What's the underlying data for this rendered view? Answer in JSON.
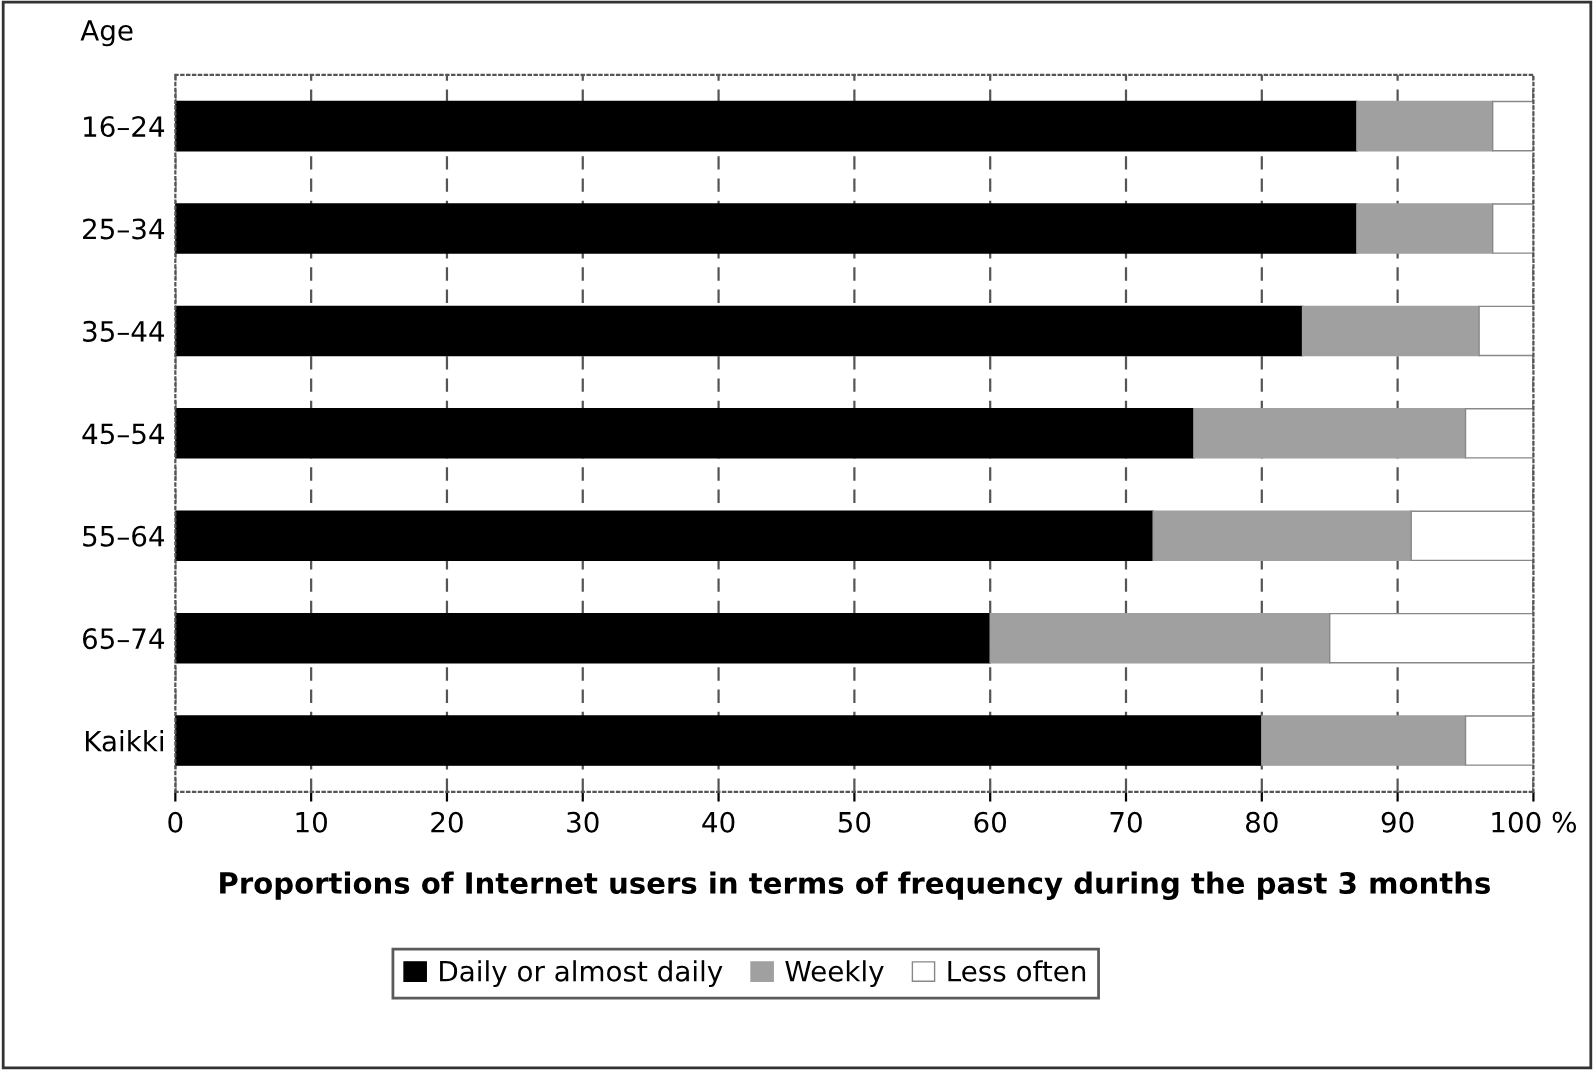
{
  "chart_data": {
    "type": "bar",
    "orientation": "horizontal",
    "stacked": true,
    "ylabel": "Age",
    "xlabel": "Proportions of Internet users in terms of frequency during the past 3 months",
    "categories": [
      "16–24",
      "25–34",
      "35–44",
      "45–54",
      "55–64",
      "65–74",
      "Kaikki"
    ],
    "series": [
      {
        "name": "Daily or almost daily",
        "color": "#000000",
        "values": [
          87,
          87,
          83,
          75,
          72,
          60,
          80
        ]
      },
      {
        "name": "Weekly",
        "color": "#a0a0a0",
        "values": [
          10,
          10,
          13,
          20,
          19,
          25,
          15
        ]
      },
      {
        "name": "Less often",
        "color": "#ffffff",
        "values": [
          3,
          3,
          4,
          5,
          9,
          15,
          5
        ]
      }
    ],
    "xlim": [
      0,
      100
    ],
    "xticks": [
      0,
      10,
      20,
      30,
      40,
      50,
      60,
      70,
      80,
      90,
      {
        "value": 100,
        "label": "100 %"
      }
    ],
    "grid": "x",
    "legend": "bottom"
  }
}
